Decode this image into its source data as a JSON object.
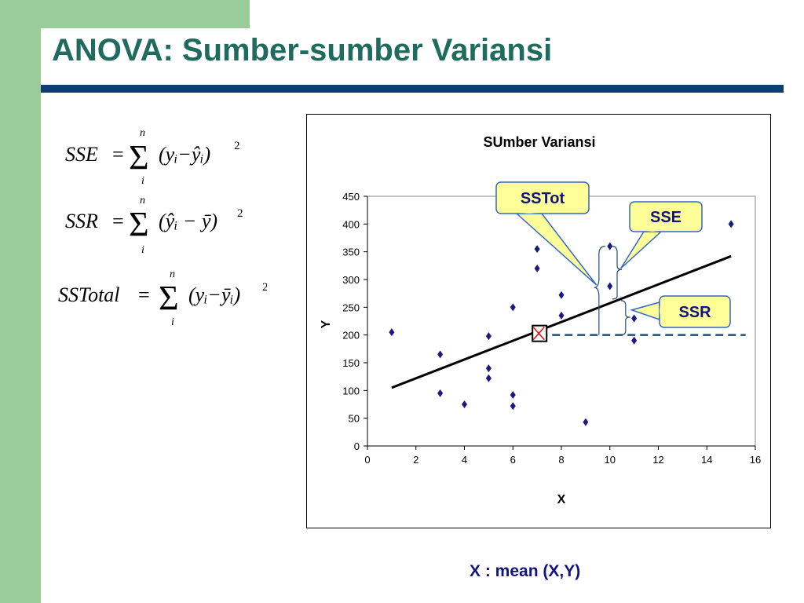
{
  "slide": {
    "title": "ANOVA: Sumber-sumber Varian­si",
    "caption": "X : mean (X,Y)"
  },
  "formulas": [
    {
      "lhs": "SSE",
      "upper": "n",
      "lower": "i",
      "body": "(yᵢ−ŷᵢ)",
      "power": "2"
    },
    {
      "lhs": "SSR",
      "upper": "n",
      "lower": "i",
      "body": "(ŷᵢ − ȳ)",
      "power": "2"
    },
    {
      "lhs": "SSTotal",
      "upper": "n",
      "lower": "i",
      "body": "(yᵢ−ȳᵢ)",
      "power": "2"
    }
  ],
  "colors": {
    "title": "#1f6b5e",
    "title_bar": "#0f3e6e",
    "sidebar_green": "#99cc99",
    "points": "#1a1a80",
    "mean_line": "#1f4f7a",
    "callout_fill": "#ffff99",
    "callout_border": "#3366cc",
    "mean_marker": "#ff0000"
  },
  "chart_data": {
    "type": "scatter",
    "title": "SUmber Variansi",
    "xlabel": "X",
    "ylabel": "Y",
    "xlim": [
      0,
      16
    ],
    "ylim": [
      0,
      450
    ],
    "xticks": [
      0,
      2,
      4,
      6,
      8,
      10,
      12,
      14,
      16
    ],
    "yticks": [
      0,
      50,
      100,
      150,
      200,
      250,
      300,
      350,
      400,
      450
    ],
    "grid": false,
    "points": [
      {
        "x": 1,
        "y": 205
      },
      {
        "x": 3,
        "y": 165
      },
      {
        "x": 3,
        "y": 95
      },
      {
        "x": 4,
        "y": 75
      },
      {
        "x": 5,
        "y": 198
      },
      {
        "x": 5,
        "y": 140
      },
      {
        "x": 5,
        "y": 122
      },
      {
        "x": 6,
        "y": 250
      },
      {
        "x": 6,
        "y": 92
      },
      {
        "x": 6,
        "y": 72
      },
      {
        "x": 7,
        "y": 355
      },
      {
        "x": 7,
        "y": 320
      },
      {
        "x": 8,
        "y": 272
      },
      {
        "x": 8,
        "y": 235
      },
      {
        "x": 9,
        "y": 43
      },
      {
        "x": 10,
        "y": 360
      },
      {
        "x": 10,
        "y": 288
      },
      {
        "x": 11,
        "y": 230
      },
      {
        "x": 11,
        "y": 190
      },
      {
        "x": 15,
        "y": 400
      }
    ],
    "regression_line": [
      {
        "x": 1,
        "y": 105
      },
      {
        "x": 15,
        "y": 342
      }
    ],
    "mean_point": {
      "x": 7.1,
      "y": 200
    },
    "mean_line_y": 200,
    "annotations": [
      {
        "label": "SSTot"
      },
      {
        "label": "SSE"
      },
      {
        "label": "SSR"
      }
    ]
  }
}
